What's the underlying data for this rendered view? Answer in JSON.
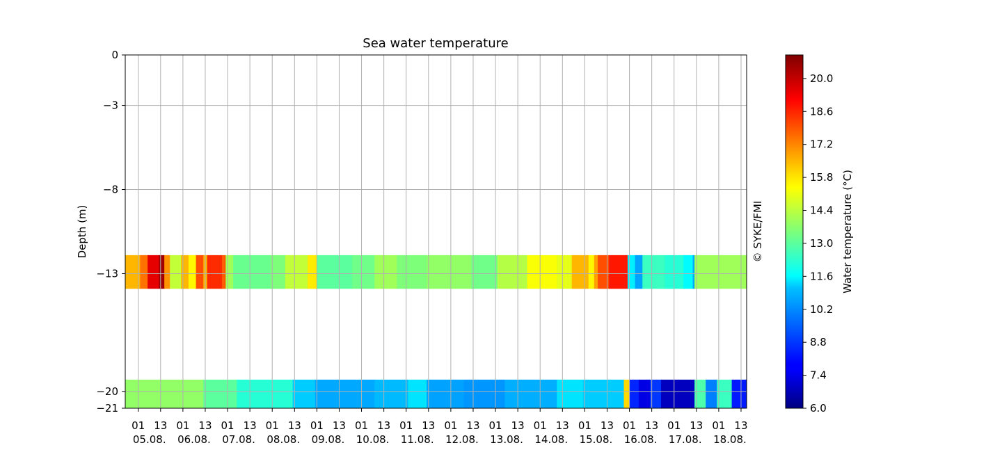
{
  "chart_data": {
    "type": "heatmap",
    "title": "Sea water temperature",
    "ylabel": "Depth (m)",
    "colorbar_label": "Water temperature (°C)",
    "copyright": "© SYKE/FMI",
    "colormap": "jet",
    "grid": true,
    "ylim": [
      -21,
      0
    ],
    "y_ticks": [
      0,
      -3,
      -8,
      -13,
      -20,
      -21
    ],
    "x_start": "2023-08-04T18:00",
    "x_end": "2023-08-18T16:00",
    "x_hour_ticks": [
      "01",
      "13",
      "01",
      "13",
      "01",
      "13",
      "01",
      "13",
      "01",
      "13",
      "01",
      "13",
      "01",
      "13",
      "01",
      "13",
      "01",
      "13",
      "01",
      "13",
      "01",
      "13",
      "01",
      "13",
      "01",
      "13",
      "01",
      "13"
    ],
    "x_day_ticks": [
      "05.08.",
      "06.08.",
      "07.08.",
      "08.08.",
      "09.08.",
      "10.08.",
      "11.08.",
      "12.08.",
      "13.08.",
      "14.08.",
      "15.08.",
      "16.08.",
      "17.08.",
      "18.08."
    ],
    "colorbar_range": [
      6.0,
      21.0
    ],
    "colorbar_ticks": [
      "6.0",
      "7.4",
      "8.8",
      "10.2",
      "11.6",
      "13.0",
      "14.4",
      "15.8",
      "17.2",
      "18.6",
      "20.0"
    ],
    "series": [
      {
        "name": "-13 m",
        "depth_range": [
          -13.9,
          -11.9
        ],
        "segments": [
          {
            "t": "2023-08-04T18:00",
            "v": 16.5
          },
          {
            "t": "2023-08-05T02:00",
            "v": 17.5
          },
          {
            "t": "2023-08-05T06:00",
            "v": 19.5
          },
          {
            "t": "2023-08-05T12:00",
            "v": 20.5
          },
          {
            "t": "2023-08-05T15:00",
            "v": 17.0
          },
          {
            "t": "2023-08-05T18:00",
            "v": 14.5
          },
          {
            "t": "2023-08-06T00:00",
            "v": 16.5
          },
          {
            "t": "2023-08-06T04:00",
            "v": 15.5
          },
          {
            "t": "2023-08-06T08:00",
            "v": 18.0
          },
          {
            "t": "2023-08-06T12:00",
            "v": 16.5
          },
          {
            "t": "2023-08-06T14:00",
            "v": 18.5
          },
          {
            "t": "2023-08-06T22:00",
            "v": 17.8
          },
          {
            "t": "2023-08-07T00:00",
            "v": 14.0
          },
          {
            "t": "2023-08-07T04:00",
            "v": 13.2
          },
          {
            "t": "2023-08-08T00:00",
            "v": 13.5
          },
          {
            "t": "2023-08-08T08:00",
            "v": 14.5
          },
          {
            "t": "2023-08-08T20:00",
            "v": 15.7
          },
          {
            "t": "2023-08-09T01:00",
            "v": 13.0
          },
          {
            "t": "2023-08-09T20:00",
            "v": 13.3
          },
          {
            "t": "2023-08-10T08:00",
            "v": 14.0
          },
          {
            "t": "2023-08-10T20:00",
            "v": 13.5
          },
          {
            "t": "2023-08-11T12:00",
            "v": 13.8
          },
          {
            "t": "2023-08-12T12:00",
            "v": 13.3
          },
          {
            "t": "2023-08-13T02:00",
            "v": 14.3
          },
          {
            "t": "2023-08-13T18:00",
            "v": 15.3
          },
          {
            "t": "2023-08-14T10:00",
            "v": 15.0
          },
          {
            "t": "2023-08-14T18:00",
            "v": 16.5
          },
          {
            "t": "2023-08-15T03:00",
            "v": 15.5
          },
          {
            "t": "2023-08-15T06:00",
            "v": 16.8
          },
          {
            "t": "2023-08-15T08:00",
            "v": 18.0
          },
          {
            "t": "2023-08-15T14:00",
            "v": 18.8
          },
          {
            "t": "2023-08-16T00:00",
            "v": 11.5
          },
          {
            "t": "2023-08-16T04:00",
            "v": 10.6
          },
          {
            "t": "2023-08-16T08:00",
            "v": 12.5
          },
          {
            "t": "2023-08-16T20:00",
            "v": 12.2
          },
          {
            "t": "2023-08-17T06:00",
            "v": 11.6
          },
          {
            "t": "2023-08-17T11:00",
            "v": 10.8
          },
          {
            "t": "2023-08-17T12:00",
            "v": 14.0
          },
          {
            "t": "2023-08-18T16:00",
            "v": 14.0
          }
        ]
      },
      {
        "name": "-20 m",
        "depth_range": [
          -21.0,
          -19.3
        ],
        "segments": [
          {
            "t": "2023-08-04T18:00",
            "v": 13.8
          },
          {
            "t": "2023-08-06T12:00",
            "v": 13.0
          },
          {
            "t": "2023-08-07T06:00",
            "v": 12.2
          },
          {
            "t": "2023-08-08T12:00",
            "v": 11.2
          },
          {
            "t": "2023-08-09T00:00",
            "v": 10.7
          },
          {
            "t": "2023-08-10T08:00",
            "v": 11.0
          },
          {
            "t": "2023-08-11T02:00",
            "v": 11.4
          },
          {
            "t": "2023-08-11T12:00",
            "v": 10.6
          },
          {
            "t": "2023-08-12T08:00",
            "v": 10.4
          },
          {
            "t": "2023-08-13T06:00",
            "v": 10.8
          },
          {
            "t": "2023-08-14T10:00",
            "v": 11.4
          },
          {
            "t": "2023-08-15T00:00",
            "v": 11.2
          },
          {
            "t": "2023-08-15T22:00",
            "v": 16.0
          },
          {
            "t": "2023-08-16T01:00",
            "v": 8.5
          },
          {
            "t": "2023-08-16T06:00",
            "v": 7.3
          },
          {
            "t": "2023-08-16T12:00",
            "v": 8.8
          },
          {
            "t": "2023-08-16T18:00",
            "v": 6.8
          },
          {
            "t": "2023-08-17T12:00",
            "v": 12.8
          },
          {
            "t": "2023-08-17T18:00",
            "v": 10.0
          },
          {
            "t": "2023-08-18T00:00",
            "v": 12.5
          },
          {
            "t": "2023-08-18T08:00",
            "v": 8.3
          },
          {
            "t": "2023-08-18T16:00",
            "v": 8.3
          }
        ]
      }
    ]
  }
}
